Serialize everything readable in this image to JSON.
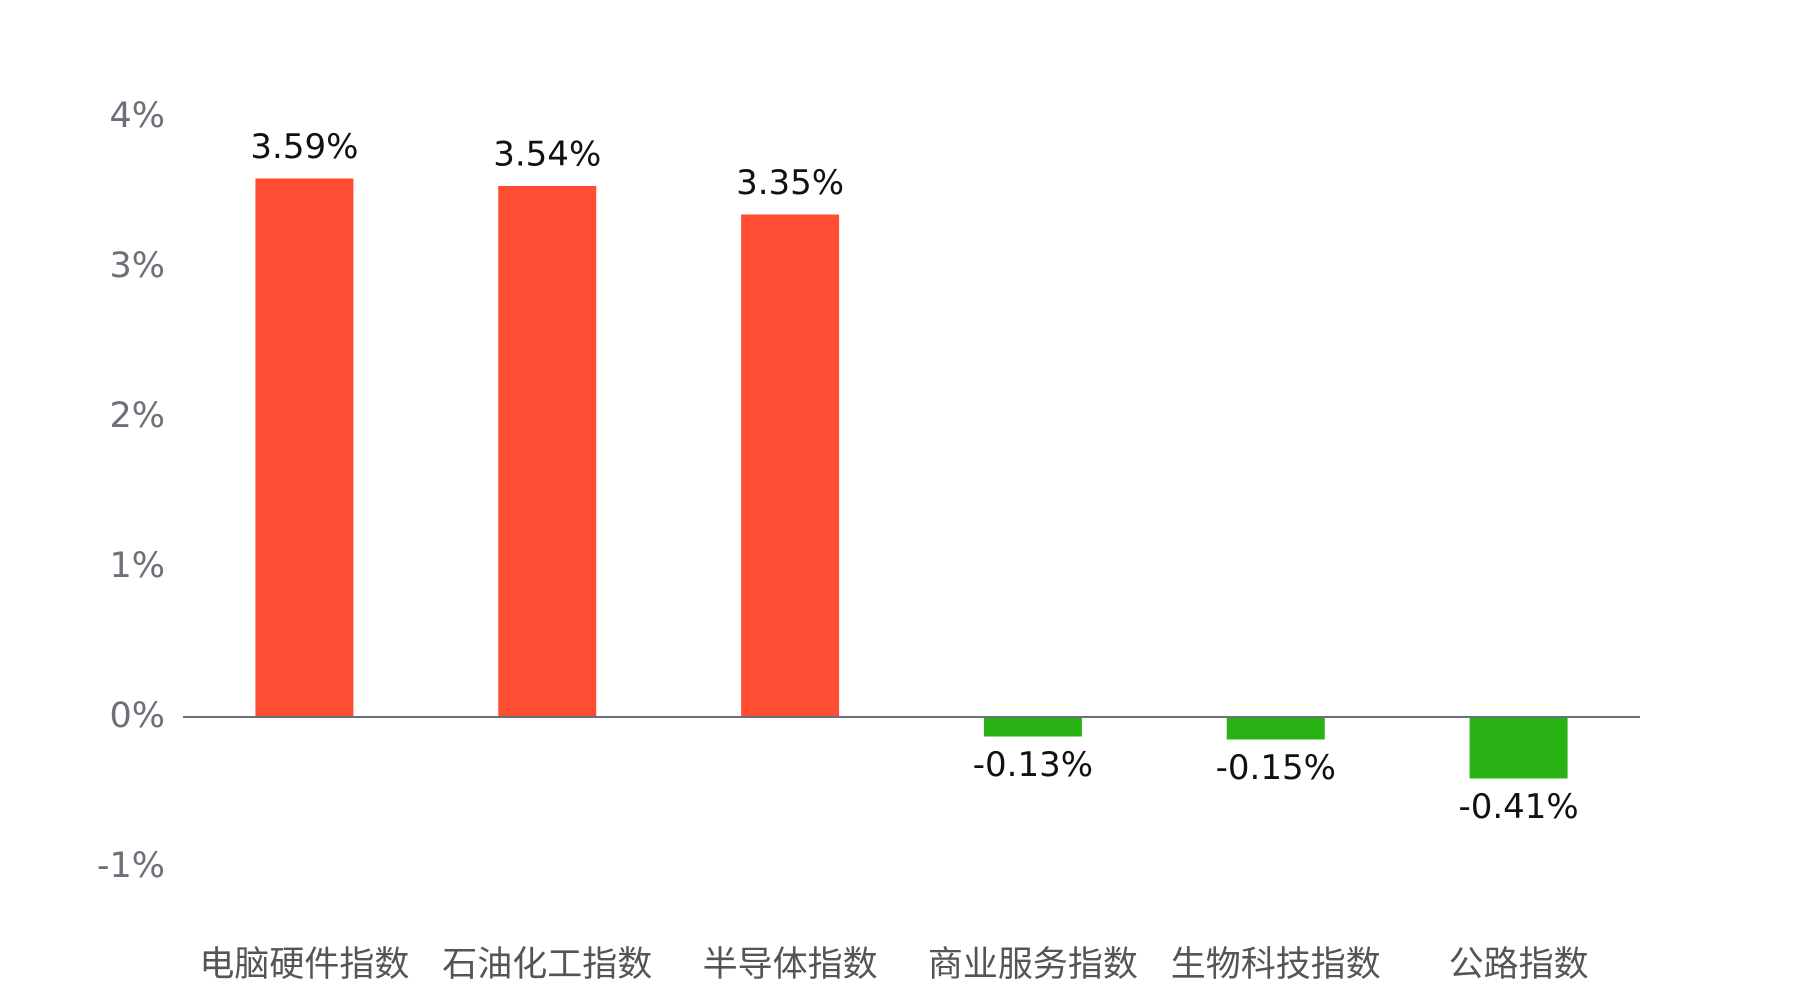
{
  "chart_data": {
    "type": "bar",
    "categories": [
      "电脑硬件指数",
      "石油化工指数",
      "半导体指数",
      "商业服务指数",
      "生物科技指数",
      "公路指数"
    ],
    "values": [
      3.59,
      3.54,
      3.35,
      -0.13,
      -0.15,
      -0.41
    ],
    "value_labels": [
      "3.59%",
      "3.54%",
      "3.35%",
      "-0.13%",
      "-0.15%",
      "-0.41%"
    ],
    "colors": [
      "#ff4d33",
      "#ff4d33",
      "#ff4d33",
      "#28b214",
      "#28b214",
      "#28b214"
    ],
    "ylim": [
      -1,
      4
    ],
    "yticks": [
      {
        "value": -1,
        "label": "-1%"
      },
      {
        "value": 0,
        "label": "0%"
      },
      {
        "value": 1,
        "label": "1%"
      },
      {
        "value": 2,
        "label": "2%"
      },
      {
        "value": 3,
        "label": "3%"
      },
      {
        "value": 4,
        "label": "4%"
      }
    ],
    "grid": false
  }
}
